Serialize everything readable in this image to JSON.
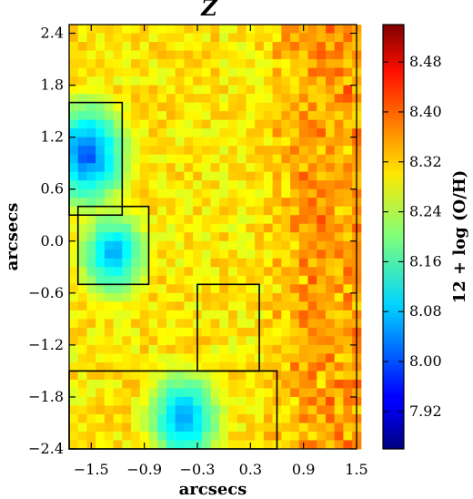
{
  "chart_data": {
    "type": "heatmap",
    "title": "Z",
    "xlabel": "arcsecs",
    "ylabel": "arcsecs",
    "xlim": [
      -1.75,
      1.5
    ],
    "ylim": [
      -2.4,
      2.5
    ],
    "xticks": [
      -1.5,
      -0.9,
      -0.3,
      0.3,
      0.9,
      1.5
    ],
    "xtick_labels": [
      "−1.5",
      "−0.9",
      "−0.3",
      "0.3",
      "0.9",
      "1.5"
    ],
    "yticks": [
      2.4,
      1.8,
      1.2,
      0.6,
      0.0,
      -0.6,
      -1.2,
      -1.8,
      -2.4
    ],
    "ytick_labels": [
      "2.4",
      "1.8",
      "1.2",
      "0.6",
      "0.0",
      "−0.6",
      "−1.2",
      "−1.8",
      "−2.4"
    ],
    "colorbar": {
      "label": "12 + log (O/H)",
      "vmin": 7.86,
      "vmax": 8.54,
      "colormap": "jet",
      "ticks": [
        8.48,
        8.4,
        8.32,
        8.24,
        8.16,
        8.08,
        8.0,
        7.92
      ],
      "tick_labels": [
        "8.48",
        "8.40",
        "8.32",
        "8.24",
        "8.16",
        "8.08",
        "8.00",
        "7.92"
      ]
    },
    "map_summary": {
      "pixel_size_arcsec": 0.1,
      "background_range": [
        8.22,
        8.36
      ],
      "east_side_range": [
        8.4,
        8.5
      ],
      "low_metallicity_knots": [
        {
          "x": -1.55,
          "y": 1.0,
          "min_value": 7.98
        },
        {
          "x": -1.25,
          "y": -0.15,
          "min_value": 8.04
        },
        {
          "x": -0.45,
          "y": -2.05,
          "min_value": 8.02
        }
      ]
    },
    "regions": [
      {
        "name": "region-1",
        "x": [
          -1.75,
          -1.15
        ],
        "y": [
          0.3,
          1.6
        ]
      },
      {
        "name": "region-2",
        "x": [
          -1.65,
          -0.85
        ],
        "y": [
          -0.5,
          0.4
        ]
      },
      {
        "name": "region-3",
        "x": [
          -0.3,
          0.4
        ],
        "y": [
          -1.5,
          -0.5
        ]
      },
      {
        "name": "region-4",
        "x": [
          -1.75,
          0.6
        ],
        "y": [
          -2.4,
          -1.5
        ]
      }
    ]
  }
}
